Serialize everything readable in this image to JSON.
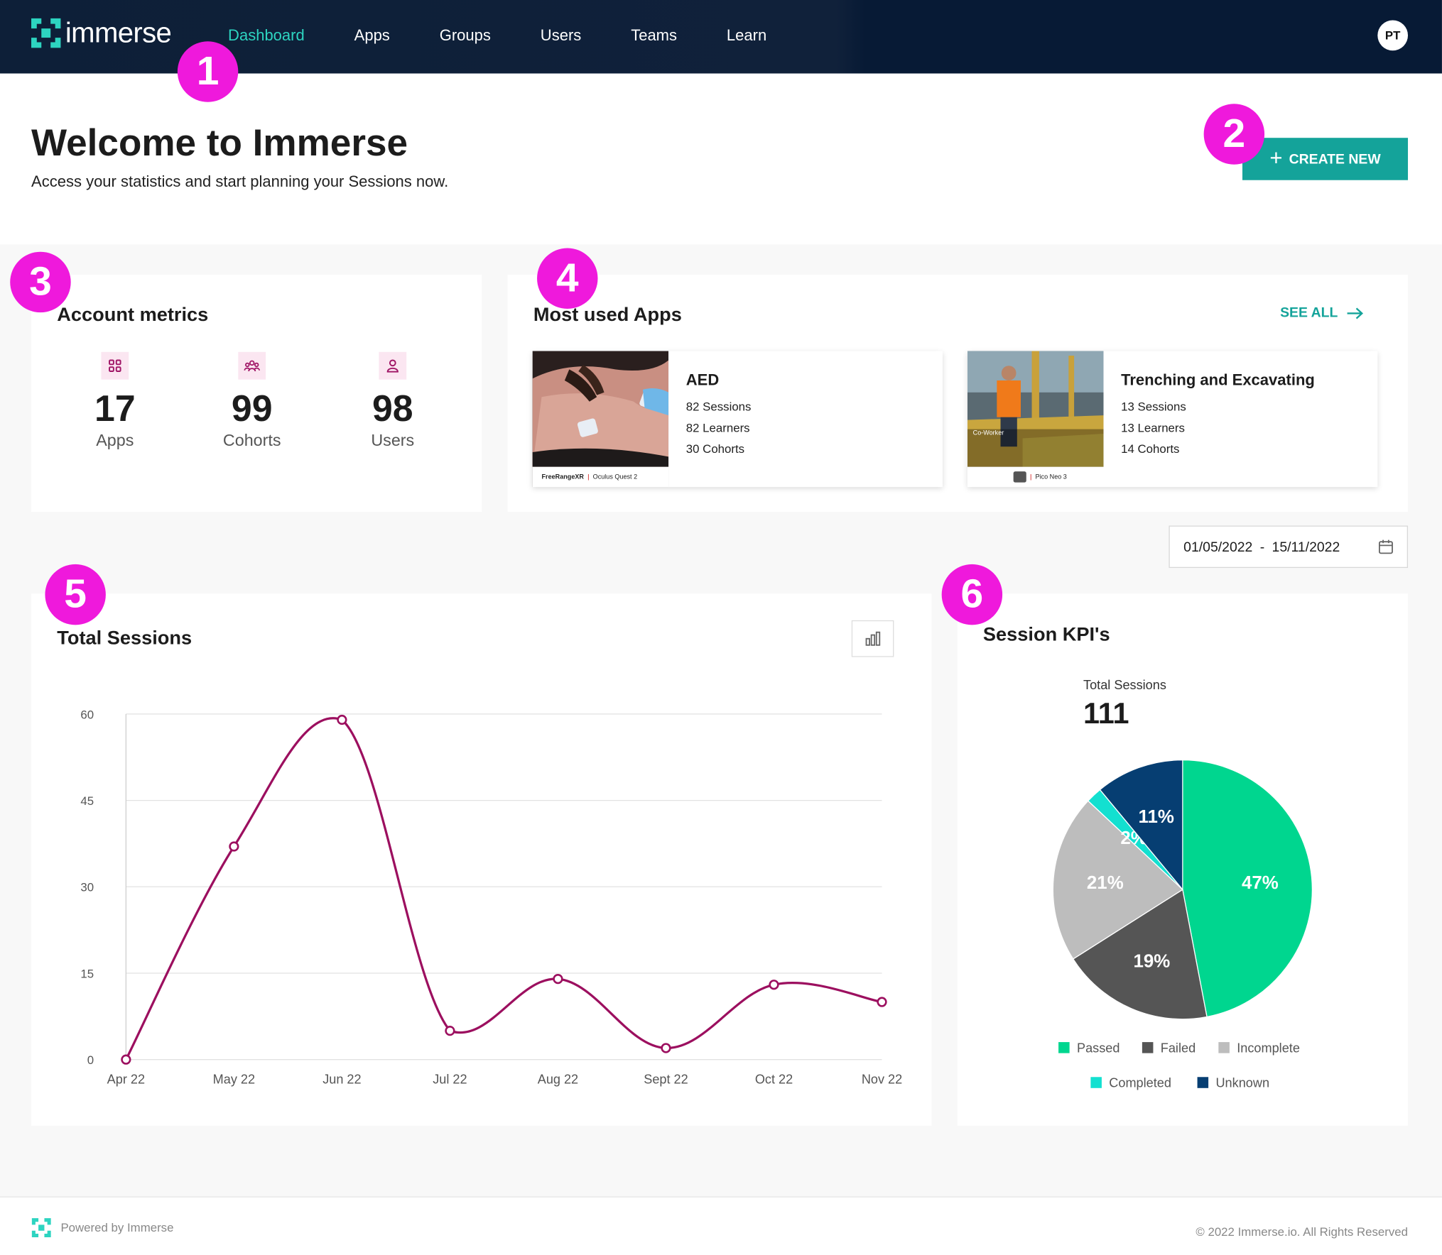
{
  "nav": {
    "brand": "immerse",
    "links": [
      "Dashboard",
      "Apps",
      "Groups",
      "Users",
      "Teams",
      "Learn"
    ],
    "avatar": "PT"
  },
  "welcome": {
    "title": "Welcome to Immerse",
    "subtitle": "Access your statistics and start planning your Sessions now.",
    "create_plus": "+",
    "create_label": "CREATE NEW"
  },
  "metrics": {
    "title": "Account metrics",
    "items": [
      {
        "value": "17",
        "label": "Apps",
        "icon": "grid-icon"
      },
      {
        "value": "99",
        "label": "Cohorts",
        "icon": "people-group-icon"
      },
      {
        "value": "98",
        "label": "Users",
        "icon": "user-icon"
      }
    ]
  },
  "apps": {
    "title": "Most used Apps",
    "see_all": "SEE ALL",
    "items": [
      {
        "title": "AED",
        "sessions": "82 Sessions",
        "learners": "82 Learners",
        "cohorts": "30 Cohorts",
        "caption_brand": "FreeRangeXR",
        "caption_device": "Oculus Quest 2"
      },
      {
        "title": "Trenching and Excavating",
        "sessions": "13 Sessions",
        "learners": "13 Learners",
        "cohorts": "14 Cohorts",
        "caption_brand": "",
        "caption_device": "Pico Neo 3",
        "overlay_label": "Co-Worker"
      }
    ]
  },
  "date_range": {
    "start": "01/05/2022",
    "separator": "-",
    "end": "15/11/2022"
  },
  "sessions_chart": {
    "title": "Total Sessions"
  },
  "chart_data": [
    {
      "type": "line",
      "title": "Total Sessions",
      "categories": [
        "Apr 22",
        "May 22",
        "Jun 22",
        "Jul 22",
        "Aug 22",
        "Sept 22",
        "Oct 22",
        "Nov 22"
      ],
      "values": [
        0,
        37,
        59,
        5,
        14,
        2,
        13,
        10
      ],
      "yticks": [
        0,
        15,
        30,
        45,
        60
      ],
      "ylim": [
        0,
        60
      ],
      "color": "#9c0f5f",
      "grid": true
    },
    {
      "type": "pie",
      "title": "Session KPI's",
      "total_label": "Total Sessions",
      "total": "111",
      "slices": [
        {
          "label": "Passed",
          "value": 47,
          "text": "47%",
          "color": "#00d68f"
        },
        {
          "label": "Failed",
          "value": 19,
          "text": "19%",
          "color": "#555555"
        },
        {
          "label": "Incomplete",
          "value": 21,
          "text": "21%",
          "color": "#bdbdbd"
        },
        {
          "label": "Completed",
          "value": 2,
          "text": "2%",
          "color": "#13e0d0"
        },
        {
          "label": "Unknown",
          "value": 11,
          "text": "11%",
          "color": "#063e72"
        }
      ]
    }
  ],
  "footer": {
    "powered": "Powered by Immerse",
    "copyright": "© 2022 Immerse.io. All Rights Reserved"
  },
  "annotations": [
    "1",
    "2",
    "3",
    "4",
    "5",
    "6"
  ],
  "colors": {
    "nav_bg": "#0d1f38",
    "accent": "#14a39a",
    "active_link": "#2dd4c0",
    "badge": "#ef19dc"
  }
}
